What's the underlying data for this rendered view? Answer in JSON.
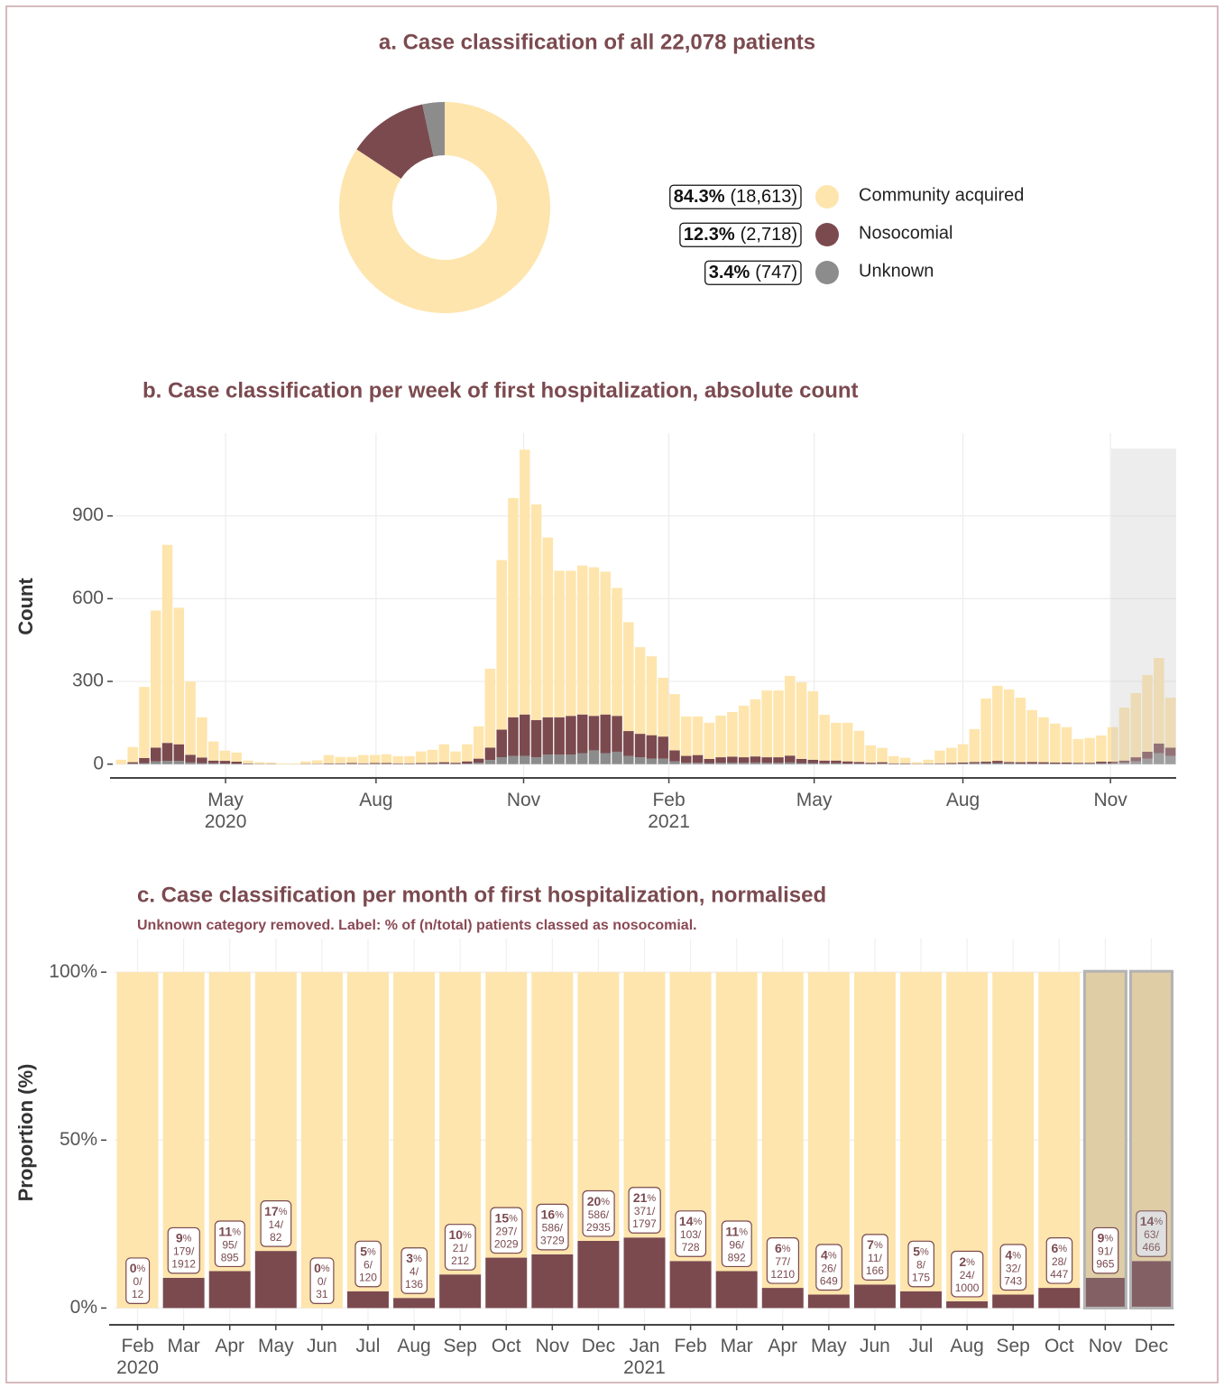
{
  "chart_data": [
    {
      "type": "donut",
      "title": "a. Case classification of all 22,078 patients",
      "categories": [
        "Community acquired",
        "Nosocomial",
        "Unknown"
      ],
      "values": [
        84.3,
        12.3,
        3.4
      ],
      "value_labels": [
        "84.3%",
        "12.3%",
        "3.4%"
      ],
      "counts": [
        18613,
        2718,
        747
      ],
      "count_labels": [
        "(18,613)",
        "(2,718)",
        "(747)"
      ],
      "colors": [
        "#fee5ad",
        "#7b4a4f",
        "#8c8c8c"
      ]
    },
    {
      "type": "stacked_bar",
      "title": "b. Case classification per week of first hospitalization, absolute count",
      "y_label": "Count",
      "categories": [
        null,
        null,
        null,
        null,
        null,
        null,
        null,
        null,
        null,
        null,
        null,
        null,
        null,
        null,
        null,
        null,
        null,
        null,
        null,
        null,
        null,
        null,
        null,
        null,
        null,
        null,
        null,
        null,
        null,
        null,
        null,
        null,
        null,
        null,
        null,
        null,
        null,
        null,
        null,
        null,
        null,
        null,
        null,
        null,
        null,
        null,
        null,
        null,
        null,
        null,
        null,
        null,
        null,
        null,
        null,
        null,
        null,
        null,
        null,
        null,
        null,
        null,
        null,
        null,
        null,
        null,
        null,
        null,
        null,
        null,
        null,
        null,
        null,
        null,
        null,
        null,
        null,
        null,
        null,
        null,
        null,
        null,
        null,
        null,
        null,
        null,
        null,
        null,
        null,
        null,
        null,
        null
      ],
      "series": [
        {
          "color": "#8c8c8c",
          "values": [
            0,
            2,
            4,
            10,
            12,
            12,
            6,
            4,
            3,
            2,
            1,
            1,
            0,
            0,
            0,
            0,
            0,
            0,
            1,
            1,
            1,
            1,
            1,
            1,
            1,
            1,
            1,
            1,
            2,
            1,
            2,
            5,
            15,
            25,
            30,
            30,
            25,
            35,
            35,
            35,
            40,
            50,
            40,
            45,
            30,
            25,
            20,
            20,
            10,
            5,
            5,
            4,
            5,
            5,
            5,
            6,
            5,
            5,
            6,
            4,
            4,
            3,
            3,
            2,
            2,
            1,
            2,
            1,
            1,
            0,
            1,
            1,
            1,
            2,
            3,
            3,
            4,
            3,
            2,
            2,
            2,
            2,
            2,
            2,
            2,
            3,
            3,
            5,
            10,
            20,
            40,
            30
          ]
        },
        {
          "color": "#7b4a4f",
          "values": [
            0,
            5,
            18,
            50,
            65,
            60,
            28,
            20,
            10,
            10,
            8,
            2,
            1,
            1,
            0,
            0,
            1,
            1,
            2,
            2,
            3,
            2,
            3,
            3,
            2,
            2,
            3,
            4,
            5,
            4,
            8,
            15,
            45,
            100,
            140,
            150,
            135,
            135,
            135,
            140,
            140,
            125,
            140,
            130,
            90,
            85,
            85,
            80,
            40,
            25,
            28,
            15,
            20,
            22,
            20,
            22,
            20,
            20,
            25,
            15,
            12,
            10,
            10,
            8,
            6,
            4,
            5,
            2,
            2,
            1,
            1,
            2,
            3,
            4,
            5,
            6,
            8,
            5,
            5,
            6,
            5,
            4,
            4,
            3,
            3,
            6,
            6,
            8,
            15,
            25,
            35,
            30
          ]
        },
        {
          "color": "#fee5ad",
          "values": [
            16,
            55,
            258,
            497,
            718,
            495,
            266,
            146,
            69,
            37,
            33,
            10,
            6,
            5,
            3,
            3,
            9,
            13,
            30,
            23,
            22,
            30,
            29,
            32,
            26,
            26,
            42,
            47,
            65,
            41,
            62,
            117,
            286,
            615,
            795,
            960,
            782,
            652,
            531,
            526,
            540,
            539,
            518,
            464,
            395,
            314,
            286,
            213,
            204,
            143,
            140,
            131,
            151,
            162,
            187,
            207,
            242,
            242,
            289,
            278,
            248,
            166,
            137,
            140,
            113,
            63,
            52,
            26,
            20,
            6,
            14,
            46,
            55,
            66,
            119,
            229,
            272,
            263,
            234,
            188,
            163,
            141,
            128,
            86,
            90,
            95,
            125,
            192,
            233,
            278,
            310,
            181
          ]
        }
      ],
      "xticks": [
        {
          "value": 9.05,
          "label": "May 2020"
        },
        {
          "value": 22.1,
          "label": "Aug"
        },
        {
          "value": 34.9,
          "label": "Nov"
        },
        {
          "value": 47.5,
          "label": "Feb 2021"
        },
        {
          "value": 60.1,
          "label": "May"
        },
        {
          "value": 73.0,
          "label": "Aug"
        },
        {
          "value": 85.8,
          "label": "Nov"
        }
      ],
      "ylim": [
        -50,
        1200
      ],
      "yticks": [
        0,
        300,
        600,
        900
      ],
      "grid": true
    },
    {
      "type": "stacked_bar",
      "title": "c. Case classification per month of first hospitalization, normalised",
      "subtitle": "Unknown category removed. Label: % of (n/total) patients classed as nosocomial.",
      "y_label": "Proportion (%)",
      "categories": [
        "Feb 2020",
        "Mar",
        "Apr",
        "May",
        "Jun",
        "Jul",
        "Aug",
        "Sep",
        "Oct",
        "Nov",
        "Dec",
        "Jan 2021",
        "Feb",
        "Mar",
        "Apr",
        "May",
        "Jun",
        "Jul",
        "Aug",
        "Sep",
        "Oct",
        "Nov",
        "Dec"
      ],
      "series": [
        {
          "color": "#7b4a4f",
          "values": [
            0,
            9,
            11,
            17,
            0,
            5,
            3,
            10,
            15,
            16,
            20,
            21,
            14,
            11,
            6,
            4,
            7,
            5,
            2,
            4,
            6,
            9,
            14
          ],
          "value_labels": [
            "0%",
            "9%",
            "11%",
            "17%",
            "0%",
            "5%",
            "3%",
            "10%",
            "15%",
            "16%",
            "20%",
            "21%",
            "14%",
            "11%",
            "6%",
            "4%",
            "7%",
            "5%",
            "2%",
            "4%",
            "6%",
            "9%",
            "14%"
          ],
          "fraction_labels": [
            "0/12",
            "179/1912",
            "95/895",
            "14/82",
            "0/31",
            "6/120",
            "4/136",
            "21/212",
            "297/2029",
            "586/3729",
            "586/2935",
            "371/1797",
            "103/728",
            "96/892",
            "77/1210",
            "26/649",
            "11/166",
            "8/175",
            "24/1000",
            "32/743",
            "28/447",
            "91/965",
            "63/466"
          ]
        },
        {
          "color": "#fee5ad",
          "values": [
            100,
            91,
            89,
            83,
            100,
            95,
            97,
            90,
            85,
            84,
            80,
            79,
            86,
            89,
            94,
            96,
            93,
            95,
            98,
            96,
            94,
            91,
            86
          ]
        }
      ],
      "ylim": [
        -5,
        110
      ],
      "yticks": [
        {
          "value": 0,
          "label": "0%"
        },
        {
          "value": 50,
          "label": "50%"
        },
        {
          "value": 100,
          "label": "100%"
        }
      ],
      "grid": true
    }
  ]
}
